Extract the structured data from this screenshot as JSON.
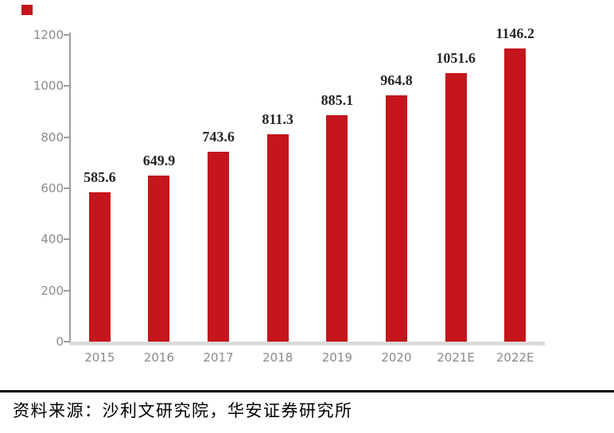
{
  "decoration": {
    "bullet_color": "#C4161C"
  },
  "chart_data": {
    "type": "bar",
    "categories": [
      "2015",
      "2016",
      "2017",
      "2018",
      "2019",
      "2020",
      "2021E",
      "2022E"
    ],
    "values": [
      585.6,
      649.9,
      743.6,
      811.3,
      885.1,
      964.8,
      1051.6,
      1146.2
    ],
    "value_labels": [
      "585.6",
      "649.9",
      "743.6",
      "811.3",
      "885.1",
      "964.8",
      "1051.6",
      "1146.2"
    ],
    "title": "",
    "xlabel": "",
    "ylabel": "",
    "ylim": [
      0,
      1200
    ],
    "yticks": [
      0,
      200,
      400,
      600,
      800,
      1000,
      1200
    ],
    "grid": false,
    "legend": "none",
    "style": {
      "bar_color": "#C4161C",
      "value_label_color": "#262626",
      "tick_label_color": "#8A8A8A",
      "axis_line_color": "#9E9E9E",
      "baseline_color": "#D9D9D9"
    }
  },
  "footer": {
    "source_text": "资料来源：沙利文研究院，华安证券研究所"
  }
}
